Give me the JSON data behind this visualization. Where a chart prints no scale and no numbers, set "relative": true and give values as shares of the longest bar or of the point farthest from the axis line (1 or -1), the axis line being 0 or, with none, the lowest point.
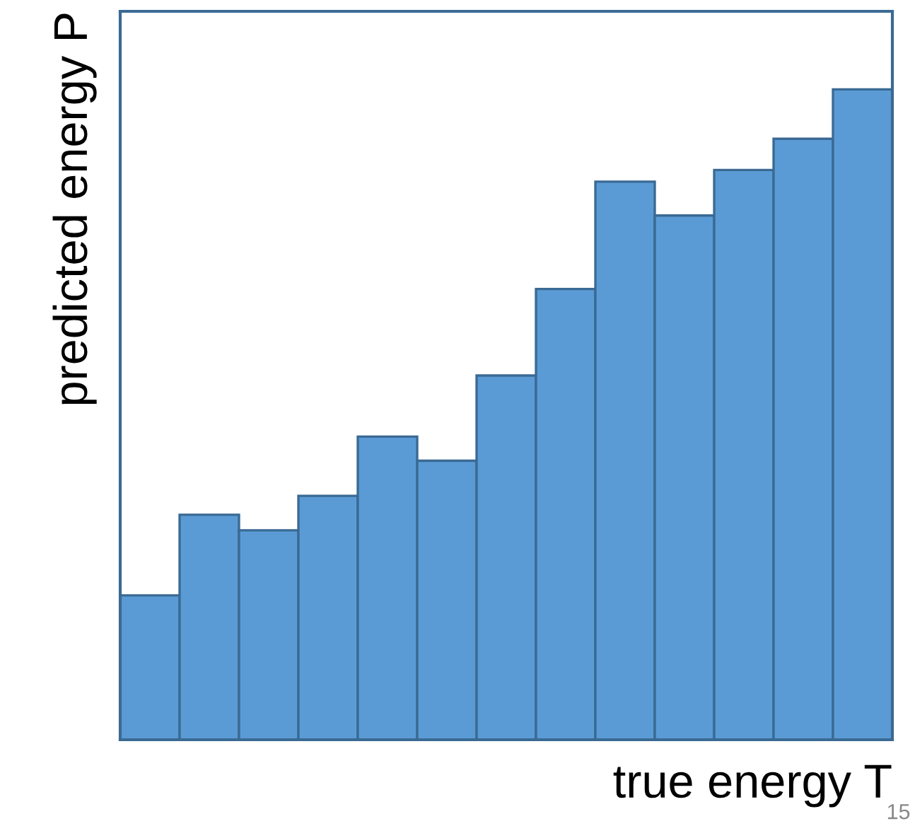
{
  "chart_data": {
    "type": "bar",
    "relative": true,
    "xlabel": "true energy T",
    "ylabel": "predicted energy P",
    "categories": [
      null,
      null,
      null,
      null,
      null,
      null,
      null,
      null,
      null,
      null,
      null,
      null,
      null
    ],
    "series": [
      {
        "color": "#5b9bd5",
        "values": [
          0.222,
          0.346,
          0.322,
          0.375,
          0.466,
          0.429,
          0.56,
          0.693,
          0.858,
          0.806,
          0.876,
          0.924,
          1
        ]
      }
    ],
    "tick_labels": false,
    "annotations": [
      "15"
    ]
  }
}
